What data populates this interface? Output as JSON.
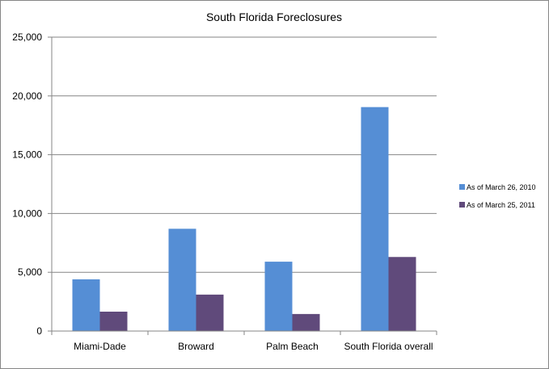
{
  "chart_data": {
    "type": "bar",
    "title": "South  Florida Foreclosures",
    "categories": [
      "Miami-Dade",
      "Broward",
      "Palm Beach",
      "South Florida overall"
    ],
    "series": [
      {
        "name": "As of March 26, 2010",
        "color": "#558ED5",
        "values": [
          4400,
          8700,
          5900,
          19050
        ]
      },
      {
        "name": "As of March 25, 2011",
        "color": "#604A7B",
        "values": [
          1650,
          3100,
          1450,
          6300
        ]
      }
    ],
    "ylim": [
      0,
      25000
    ],
    "yticks": [
      0,
      5000,
      10000,
      15000,
      20000,
      25000
    ],
    "ytick_labels": [
      "0",
      "5,000",
      "10,000",
      "15,000",
      "20,000",
      "25,000"
    ],
    "xlabel": "",
    "ylabel": "",
    "grid": true,
    "legend_position": "right"
  }
}
